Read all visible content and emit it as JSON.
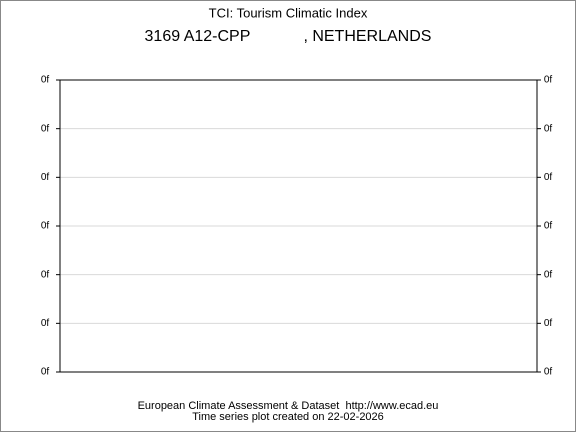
{
  "chart_data": {
    "type": "line",
    "title": "TCI: Tourism Climatic Index",
    "subtitle": "3169 A12-CPP            , NETHERLANDS",
    "footer": [
      "European Climate Assessment & Dataset  http://www.ecad.eu",
      "Time series plot created on 22-02-2026"
    ],
    "ylim": [
      0,
      6
    ],
    "yticks": [
      {
        "value": 0,
        "label": "0f"
      },
      {
        "value": 1,
        "label": "0f"
      },
      {
        "value": 2,
        "label": "0f"
      },
      {
        "value": 3,
        "label": "0f"
      },
      {
        "value": 4,
        "label": "0f"
      },
      {
        "value": 5,
        "label": "0f"
      },
      {
        "value": 6,
        "label": "0f"
      }
    ],
    "grid": true,
    "grid_color": "#d9d9d9"
  }
}
